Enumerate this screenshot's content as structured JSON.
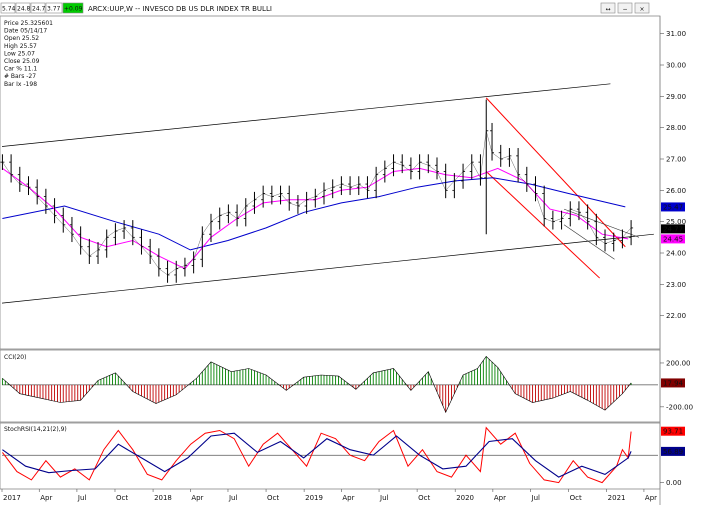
{
  "window": {
    "title": "ARCX:UUP,W -- INVESCO DB US DLR INDEX TR BULLI",
    "quote_boxes": [
      "5.74",
      "24.81",
      "24.73",
      "3.77",
      "+0.09"
    ],
    "controls": [
      "↔",
      "−",
      "×"
    ]
  },
  "info": {
    "lines": [
      "Price  25.325601",
      "Date   05/14/17",
      "Open   25.52",
      "High   25.57",
      "Low    25.07",
      "Close  25.09",
      "Car % 11.1",
      "# Bars -27",
      "Bar Ix -198"
    ]
  },
  "colors": {
    "price": "#000000",
    "ma_short": "#ff00ff",
    "ma_long": "#0000cc",
    "channel": "#000000",
    "red_channel": "#ff0000",
    "cci_pos": "#008000",
    "cci_neg": "#c00000",
    "stoch_k": "#ff0000",
    "stoch_d": "#00008b",
    "tag_blue": "#0000cc",
    "tag_black": "#000000",
    "tag_magenta": "#ff00ff",
    "tag_maroon": "#800000",
    "tag_red": "#ff0000",
    "tag_navy": "#00008b"
  },
  "chart_data": [
    {
      "type": "line",
      "panel": "price",
      "title": "",
      "y_ticks": [
        "31.00",
        "30.00",
        "29.00",
        "28.00",
        "27.00",
        "26.00",
        "25.00",
        "24.00",
        "23.00",
        "22.00"
      ],
      "y_tick_values": [
        31,
        30,
        29,
        28,
        27,
        26,
        25,
        24,
        23,
        22
      ],
      "ylim": [
        21.0,
        31.5
      ],
      "x_range": [
        "2017-01-01",
        "2021-05-05"
      ],
      "price_points": [
        [
          "2017-01-02",
          26.9
        ],
        [
          "2017-01-23",
          26.5
        ],
        [
          "2017-02-13",
          26.2
        ],
        [
          "2017-03-06",
          26.1
        ],
        [
          "2017-03-27",
          25.8
        ],
        [
          "2017-04-17",
          25.5
        ],
        [
          "2017-05-08",
          25.2
        ],
        [
          "2017-05-29",
          24.9
        ],
        [
          "2017-06-19",
          24.6
        ],
        [
          "2017-07-10",
          24.2
        ],
        [
          "2017-07-31",
          23.9
        ],
        [
          "2017-08-21",
          24.1
        ],
        [
          "2017-09-11",
          24.5
        ],
        [
          "2017-10-02",
          24.7
        ],
        [
          "2017-10-23",
          24.8
        ],
        [
          "2017-11-13",
          24.5
        ],
        [
          "2017-12-04",
          24.2
        ],
        [
          "2017-12-25",
          23.9
        ],
        [
          "2018-01-15",
          23.5
        ],
        [
          "2018-02-05",
          23.3
        ],
        [
          "2018-02-26",
          23.5
        ],
        [
          "2018-03-19",
          23.6
        ],
        [
          "2018-04-09",
          23.8
        ],
        [
          "2018-04-30",
          24.6
        ],
        [
          "2018-05-21",
          25.0
        ],
        [
          "2018-06-11",
          25.2
        ],
        [
          "2018-07-02",
          25.3
        ],
        [
          "2018-07-23",
          25.1
        ],
        [
          "2018-08-13",
          25.5
        ],
        [
          "2018-09-03",
          25.7
        ],
        [
          "2018-09-24",
          25.9
        ],
        [
          "2018-10-15",
          25.8
        ],
        [
          "2018-11-05",
          25.9
        ],
        [
          "2018-11-26",
          25.6
        ],
        [
          "2018-12-17",
          25.5
        ],
        [
          "2019-01-07",
          25.7
        ],
        [
          "2019-01-28",
          25.8
        ],
        [
          "2019-02-18",
          26.0
        ],
        [
          "2019-03-11",
          26.1
        ],
        [
          "2019-04-01",
          26.2
        ],
        [
          "2019-04-22",
          26.1
        ],
        [
          "2019-05-13",
          26.2
        ],
        [
          "2019-06-03",
          26.0
        ],
        [
          "2019-06-24",
          26.5
        ],
        [
          "2019-07-15",
          26.7
        ],
        [
          "2019-08-05",
          26.9
        ],
        [
          "2019-08-26",
          26.8
        ],
        [
          "2019-09-16",
          26.6
        ],
        [
          "2019-10-07",
          26.9
        ],
        [
          "2019-10-28",
          26.8
        ],
        [
          "2019-11-18",
          26.6
        ],
        [
          "2019-12-09",
          26.0
        ],
        [
          "2019-12-30",
          26.3
        ],
        [
          "2020-01-20",
          26.6
        ],
        [
          "2020-02-10",
          26.9
        ],
        [
          "2020-03-02",
          26.4
        ],
        [
          "2020-03-16",
          27.9
        ],
        [
          "2020-03-30",
          27.2
        ],
        [
          "2020-04-20",
          27.0
        ],
        [
          "2020-05-11",
          27.1
        ],
        [
          "2020-06-01",
          26.5
        ],
        [
          "2020-06-22",
          26.2
        ],
        [
          "2020-07-13",
          25.9
        ],
        [
          "2020-08-03",
          25.1
        ],
        [
          "2020-08-24",
          25.0
        ],
        [
          "2020-09-14",
          25.1
        ],
        [
          "2020-10-05",
          25.4
        ],
        [
          "2020-10-26",
          25.3
        ],
        [
          "2020-11-16",
          25.0
        ],
        [
          "2020-12-07",
          24.5
        ],
        [
          "2020-12-28",
          24.3
        ],
        [
          "2021-01-18",
          24.4
        ],
        [
          "2021-02-08",
          24.5
        ],
        [
          "2021-03-01",
          24.8
        ]
      ],
      "ma_short_points": [
        [
          "2017-01-02",
          26.7
        ],
        [
          "2017-03-06",
          26.1
        ],
        [
          "2017-05-08",
          25.4
        ],
        [
          "2017-07-10",
          24.5
        ],
        [
          "2017-09-11",
          24.2
        ],
        [
          "2017-11-13",
          24.4
        ],
        [
          "2018-01-15",
          23.9
        ],
        [
          "2018-03-19",
          23.5
        ],
        [
          "2018-05-21",
          24.5
        ],
        [
          "2018-07-23",
          25.1
        ],
        [
          "2018-09-24",
          25.6
        ],
        [
          "2018-11-26",
          25.7
        ],
        [
          "2019-01-28",
          25.7
        ],
        [
          "2019-03-31",
          26.0
        ],
        [
          "2019-06-03",
          26.1
        ],
        [
          "2019-08-05",
          26.6
        ],
        [
          "2019-10-07",
          26.7
        ],
        [
          "2019-12-09",
          26.5
        ],
        [
          "2020-02-10",
          26.4
        ],
        [
          "2020-04-13",
          26.7
        ],
        [
          "2020-06-15",
          26.3
        ],
        [
          "2020-08-17",
          25.4
        ],
        [
          "2020-10-19",
          25.2
        ],
        [
          "2020-12-21",
          24.6
        ],
        [
          "2021-02-22",
          24.45
        ]
      ],
      "ma_long_points": [
        [
          "2017-01-02",
          25.1
        ],
        [
          "2017-06-01",
          25.5
        ],
        [
          "2017-10-01",
          25.0
        ],
        [
          "2018-01-15",
          24.6
        ],
        [
          "2018-04-01",
          24.1
        ],
        [
          "2018-07-01",
          24.4
        ],
        [
          "2018-10-01",
          24.8
        ],
        [
          "2019-01-01",
          25.3
        ],
        [
          "2019-04-01",
          25.6
        ],
        [
          "2019-07-01",
          25.8
        ],
        [
          "2019-10-01",
          26.1
        ],
        [
          "2020-01-01",
          26.3
        ],
        [
          "2020-04-01",
          26.4
        ],
        [
          "2020-07-01",
          26.2
        ],
        [
          "2020-10-01",
          25.9
        ],
        [
          "2021-02-15",
          25.47
        ]
      ],
      "channel_upper": [
        [
          "2017-01-01",
          27.4
        ],
        [
          "2021-01-10",
          29.4
        ]
      ],
      "channel_lower": [
        [
          "2017-01-01",
          22.4
        ],
        [
          "2021-04-25",
          24.6
        ]
      ],
      "red_upper": [
        [
          "2020-03-16",
          28.95
        ],
        [
          "2021-02-15",
          24.2
        ]
      ],
      "red_lower": [
        [
          "2020-03-16",
          26.6
        ],
        [
          "2020-12-15",
          23.2
        ]
      ],
      "gray_upper": [
        [
          "2020-09-20",
          25.4
        ],
        [
          "2021-03-20",
          24.5
        ]
      ],
      "gray_lower": [
        [
          "2020-09-20",
          24.9
        ],
        [
          "2021-01-20",
          23.8
        ]
      ],
      "value_tags": [
        {
          "value": 25.47,
          "label": "25.47",
          "color_key": "tag_blue"
        },
        {
          "value": 24.77,
          "label": "24.77",
          "color_key": "tag_black"
        },
        {
          "value": 24.45,
          "label": "24.45",
          "color_key": "tag_magenta"
        }
      ]
    },
    {
      "type": "bar",
      "panel": "cci",
      "title": "CCI(20)",
      "y_ticks": [
        "200.00",
        "-200.00"
      ],
      "y_tick_values": [
        200,
        -200
      ],
      "ylim": [
        -320,
        300
      ],
      "x_range": [
        "2017-01-01",
        "2021-05-05"
      ],
      "points": [
        [
          "2017-01-02",
          60
        ],
        [
          "2017-02-13",
          -80
        ],
        [
          "2017-04-03",
          -120
        ],
        [
          "2017-05-22",
          -160
        ],
        [
          "2017-07-10",
          -140
        ],
        [
          "2017-08-21",
          40
        ],
        [
          "2017-10-02",
          110
        ],
        [
          "2017-11-13",
          -60
        ],
        [
          "2018-01-08",
          -170
        ],
        [
          "2018-02-26",
          -90
        ],
        [
          "2018-04-16",
          60
        ],
        [
          "2018-05-21",
          210
        ],
        [
          "2018-07-09",
          120
        ],
        [
          "2018-08-20",
          150
        ],
        [
          "2018-10-01",
          90
        ],
        [
          "2018-11-19",
          -50
        ],
        [
          "2018-12-31",
          70
        ],
        [
          "2019-02-11",
          90
        ],
        [
          "2019-03-25",
          80
        ],
        [
          "2019-05-06",
          -40
        ],
        [
          "2019-06-17",
          110
        ],
        [
          "2019-08-05",
          150
        ],
        [
          "2019-09-16",
          -50
        ],
        [
          "2019-10-28",
          120
        ],
        [
          "2019-12-09",
          -250
        ],
        [
          "2020-01-20",
          90
        ],
        [
          "2020-02-24",
          150
        ],
        [
          "2020-03-16",
          260
        ],
        [
          "2020-04-13",
          160
        ],
        [
          "2020-05-25",
          -80
        ],
        [
          "2020-07-06",
          -160
        ],
        [
          "2020-08-24",
          -120
        ],
        [
          "2020-10-05",
          -60
        ],
        [
          "2020-11-16",
          -140
        ],
        [
          "2020-12-28",
          -230
        ],
        [
          "2021-02-08",
          -80
        ],
        [
          "2021-03-01",
          18
        ]
      ],
      "value_tags": [
        {
          "value": 17.94,
          "label": "17.94",
          "color_key": "tag_maroon"
        }
      ]
    },
    {
      "type": "line",
      "panel": "stoch",
      "title": "StochRSI(14,21(2),9)",
      "y_ticks": [
        "0.00"
      ],
      "y_tick_values": [
        0
      ],
      "ylim": [
        -8,
        105
      ],
      "ref_level": 50,
      "x_range": [
        "2017-01-01",
        "2021-05-05"
      ],
      "k_points": [
        [
          "2017-01-02",
          55
        ],
        [
          "2017-02-06",
          20
        ],
        [
          "2017-03-13",
          5
        ],
        [
          "2017-04-17",
          40
        ],
        [
          "2017-05-22",
          10
        ],
        [
          "2017-06-26",
          25
        ],
        [
          "2017-07-31",
          5
        ],
        [
          "2017-09-04",
          60
        ],
        [
          "2017-10-09",
          95
        ],
        [
          "2017-11-13",
          60
        ],
        [
          "2017-12-18",
          15
        ],
        [
          "2018-01-22",
          5
        ],
        [
          "2018-02-26",
          40
        ],
        [
          "2018-04-02",
          70
        ],
        [
          "2018-05-07",
          90
        ],
        [
          "2018-06-11",
          95
        ],
        [
          "2018-07-16",
          80
        ],
        [
          "2018-08-20",
          30
        ],
        [
          "2018-09-24",
          70
        ],
        [
          "2018-10-29",
          90
        ],
        [
          "2018-12-03",
          60
        ],
        [
          "2019-01-07",
          30
        ],
        [
          "2019-02-11",
          90
        ],
        [
          "2019-03-18",
          80
        ],
        [
          "2019-04-22",
          50
        ],
        [
          "2019-05-27",
          40
        ],
        [
          "2019-07-01",
          75
        ],
        [
          "2019-08-05",
          95
        ],
        [
          "2019-09-09",
          30
        ],
        [
          "2019-10-14",
          60
        ],
        [
          "2019-11-18",
          20
        ],
        [
          "2019-12-23",
          10
        ],
        [
          "2020-01-27",
          50
        ],
        [
          "2020-03-02",
          20
        ],
        [
          "2020-03-16",
          100
        ],
        [
          "2020-04-20",
          70
        ],
        [
          "2020-05-25",
          90
        ],
        [
          "2020-06-29",
          35
        ],
        [
          "2020-08-03",
          5
        ],
        [
          "2020-09-07",
          0
        ],
        [
          "2020-10-12",
          40
        ],
        [
          "2020-11-16",
          10
        ],
        [
          "2020-12-21",
          0
        ],
        [
          "2021-01-25",
          30
        ],
        [
          "2021-02-08",
          60
        ],
        [
          "2021-02-22",
          45
        ],
        [
          "2021-03-01",
          93
        ]
      ],
      "d_points": [
        [
          "2017-01-02",
          60
        ],
        [
          "2017-02-27",
          30
        ],
        [
          "2017-04-24",
          18
        ],
        [
          "2017-06-19",
          22
        ],
        [
          "2017-08-14",
          25
        ],
        [
          "2017-10-09",
          70
        ],
        [
          "2017-12-04",
          45
        ],
        [
          "2018-01-29",
          20
        ],
        [
          "2018-03-26",
          45
        ],
        [
          "2018-05-21",
          85
        ],
        [
          "2018-07-16",
          90
        ],
        [
          "2018-09-10",
          55
        ],
        [
          "2018-11-05",
          75
        ],
        [
          "2018-12-31",
          45
        ],
        [
          "2019-02-25",
          80
        ],
        [
          "2019-04-22",
          60
        ],
        [
          "2019-06-17",
          50
        ],
        [
          "2019-08-12",
          85
        ],
        [
          "2019-10-07",
          50
        ],
        [
          "2019-12-02",
          25
        ],
        [
          "2020-01-27",
          30
        ],
        [
          "2020-03-23",
          75
        ],
        [
          "2020-05-18",
          80
        ],
        [
          "2020-07-13",
          40
        ],
        [
          "2020-09-07",
          10
        ],
        [
          "2020-11-02",
          30
        ],
        [
          "2020-12-28",
          15
        ],
        [
          "2021-02-22",
          45
        ],
        [
          "2021-03-01",
          57
        ]
      ],
      "value_tags": [
        {
          "value": 93.71,
          "label": "93.71",
          "color_key": "tag_red"
        },
        {
          "value": 56.89,
          "label": "56.89",
          "color_key": "tag_navy"
        }
      ]
    }
  ],
  "time_axis": {
    "labels": [
      {
        "date": "2017-01-01",
        "text": "2017"
      },
      {
        "date": "2017-04-01",
        "text": "Apr"
      },
      {
        "date": "2017-07-01",
        "text": "Jul"
      },
      {
        "date": "2017-10-01",
        "text": "Oct"
      },
      {
        "date": "2018-01-01",
        "text": "2018"
      },
      {
        "date": "2018-04-01",
        "text": "Apr"
      },
      {
        "date": "2018-07-01",
        "text": "Jul"
      },
      {
        "date": "2018-10-01",
        "text": "Oct"
      },
      {
        "date": "2019-01-01",
        "text": "2019"
      },
      {
        "date": "2019-04-01",
        "text": "Apr"
      },
      {
        "date": "2019-07-01",
        "text": "Jul"
      },
      {
        "date": "2019-10-01",
        "text": "Oct"
      },
      {
        "date": "2020-01-01",
        "text": "2020"
      },
      {
        "date": "2020-04-01",
        "text": "Apr"
      },
      {
        "date": "2020-07-01",
        "text": "Jul"
      },
      {
        "date": "2020-10-01",
        "text": "Oct"
      },
      {
        "date": "2021-01-01",
        "text": "2021"
      },
      {
        "date": "2021-04-01",
        "text": "Apr"
      }
    ]
  }
}
